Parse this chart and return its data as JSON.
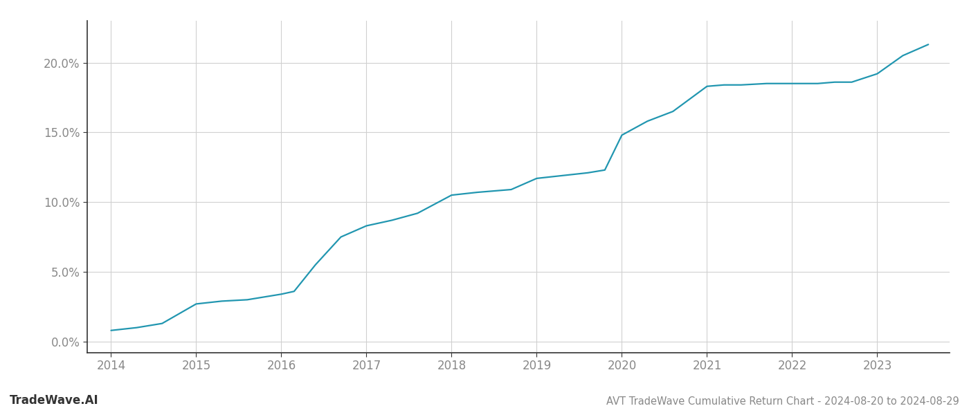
{
  "x_values": [
    2014.0,
    2014.3,
    2014.6,
    2015.0,
    2015.3,
    2015.6,
    2016.0,
    2016.15,
    2016.4,
    2016.7,
    2017.0,
    2017.3,
    2017.6,
    2018.0,
    2018.3,
    2018.5,
    2018.7,
    2019.0,
    2019.3,
    2019.6,
    2019.8,
    2020.0,
    2020.3,
    2020.6,
    2021.0,
    2021.2,
    2021.4,
    2021.7,
    2022.0,
    2022.3,
    2022.5,
    2022.7,
    2023.0,
    2023.3,
    2023.6
  ],
  "y_values": [
    0.008,
    0.01,
    0.013,
    0.027,
    0.029,
    0.03,
    0.034,
    0.036,
    0.055,
    0.075,
    0.083,
    0.087,
    0.092,
    0.105,
    0.107,
    0.108,
    0.109,
    0.117,
    0.119,
    0.121,
    0.123,
    0.148,
    0.158,
    0.165,
    0.183,
    0.184,
    0.184,
    0.185,
    0.185,
    0.185,
    0.186,
    0.186,
    0.192,
    0.205,
    0.213
  ],
  "line_color": "#2196b0",
  "line_width": 1.6,
  "background_color": "#ffffff",
  "grid_color": "#d0d0d0",
  "title": "AVT TradeWave Cumulative Return Chart - 2024-08-20 to 2024-08-29",
  "watermark": "TradeWave.AI",
  "xlim": [
    2013.72,
    2023.85
  ],
  "ylim": [
    -0.008,
    0.23
  ],
  "xticks": [
    2014,
    2015,
    2016,
    2017,
    2018,
    2019,
    2020,
    2021,
    2022,
    2023
  ],
  "yticks": [
    0.0,
    0.05,
    0.1,
    0.15,
    0.2
  ],
  "ytick_labels": [
    "0.0%",
    "5.0%",
    "10.0%",
    "15.0%",
    "20.0%"
  ],
  "tick_color": "#888888",
  "title_fontsize": 10.5,
  "watermark_fontsize": 12,
  "tick_fontsize": 12,
  "left_spine_color": "#333333"
}
